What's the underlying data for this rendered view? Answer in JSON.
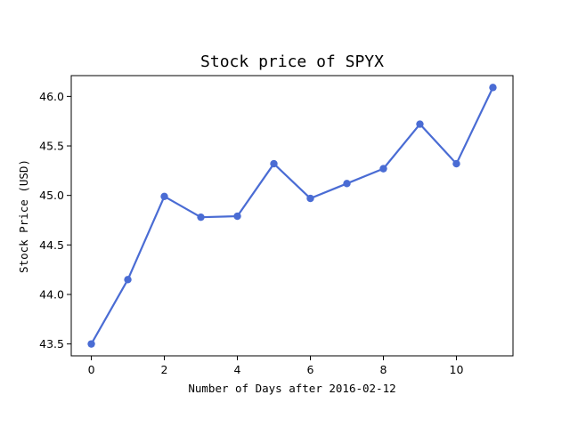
{
  "chart_data": {
    "type": "line",
    "title": "Stock price of SPYX",
    "xlabel": "Number of Days after 2016-02-12",
    "ylabel": "Stock Price (USD)",
    "x": [
      0,
      1,
      2,
      3,
      4,
      5,
      6,
      7,
      8,
      9,
      10,
      11
    ],
    "series": [
      {
        "values": [
          43.5,
          44.15,
          44.99,
          44.78,
          44.79,
          45.32,
          44.97,
          45.12,
          45.27,
          45.72,
          45.32,
          46.09
        ]
      }
    ],
    "xlim": [
      -0.55,
      11.55
    ],
    "ylim": [
      43.38,
      46.21
    ],
    "xticks": [
      0,
      2,
      4,
      6,
      8,
      10
    ],
    "xtick_labels": [
      "0",
      "2",
      "4",
      "6",
      "8",
      "10"
    ],
    "yticks": [
      43.5,
      44.0,
      44.5,
      45.0,
      45.5,
      46.0
    ],
    "ytick_labels": [
      "43.5",
      "44.0",
      "44.5",
      "45.0",
      "45.5",
      "46.0"
    ],
    "grid": false,
    "line_color": "#4a6cd4",
    "marker": "circle"
  }
}
